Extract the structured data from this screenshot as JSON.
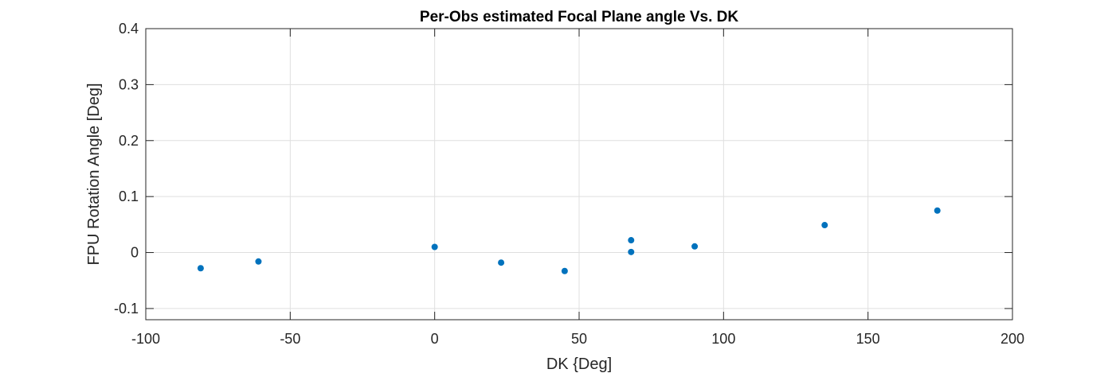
{
  "chart_data": {
    "type": "scatter",
    "title": "Per-Obs estimated Focal Plane angle Vs. DK",
    "xlabel": "DK {Deg]",
    "ylabel": "FPU Rotation Angle [Deg]",
    "xlim": [
      -100,
      200
    ],
    "ylim": [
      -0.12,
      0.4
    ],
    "xticks": [
      -100,
      -50,
      0,
      50,
      100,
      150,
      200
    ],
    "xtick_labels": [
      "-100",
      "-50",
      "0",
      "50",
      "100",
      "150",
      "200"
    ],
    "yticks": [
      -0.1,
      0,
      0.1,
      0.2,
      0.3,
      0.4
    ],
    "ytick_labels": [
      "-0.1",
      "0",
      "0.1",
      "0.2",
      "0.3",
      "0.4"
    ],
    "grid": true,
    "marker_color": "#0072BD",
    "series": [
      {
        "points": [
          {
            "x": -81,
            "y": -0.028
          },
          {
            "x": -61,
            "y": -0.016
          },
          {
            "x": 0,
            "y": 0.01
          },
          {
            "x": 23,
            "y": -0.018
          },
          {
            "x": 45,
            "y": -0.033
          },
          {
            "x": 68,
            "y": 0.022
          },
          {
            "x": 68,
            "y": 0.001
          },
          {
            "x": 90,
            "y": 0.011
          },
          {
            "x": 135,
            "y": 0.049
          },
          {
            "x": 174,
            "y": 0.075
          }
        ]
      }
    ]
  }
}
